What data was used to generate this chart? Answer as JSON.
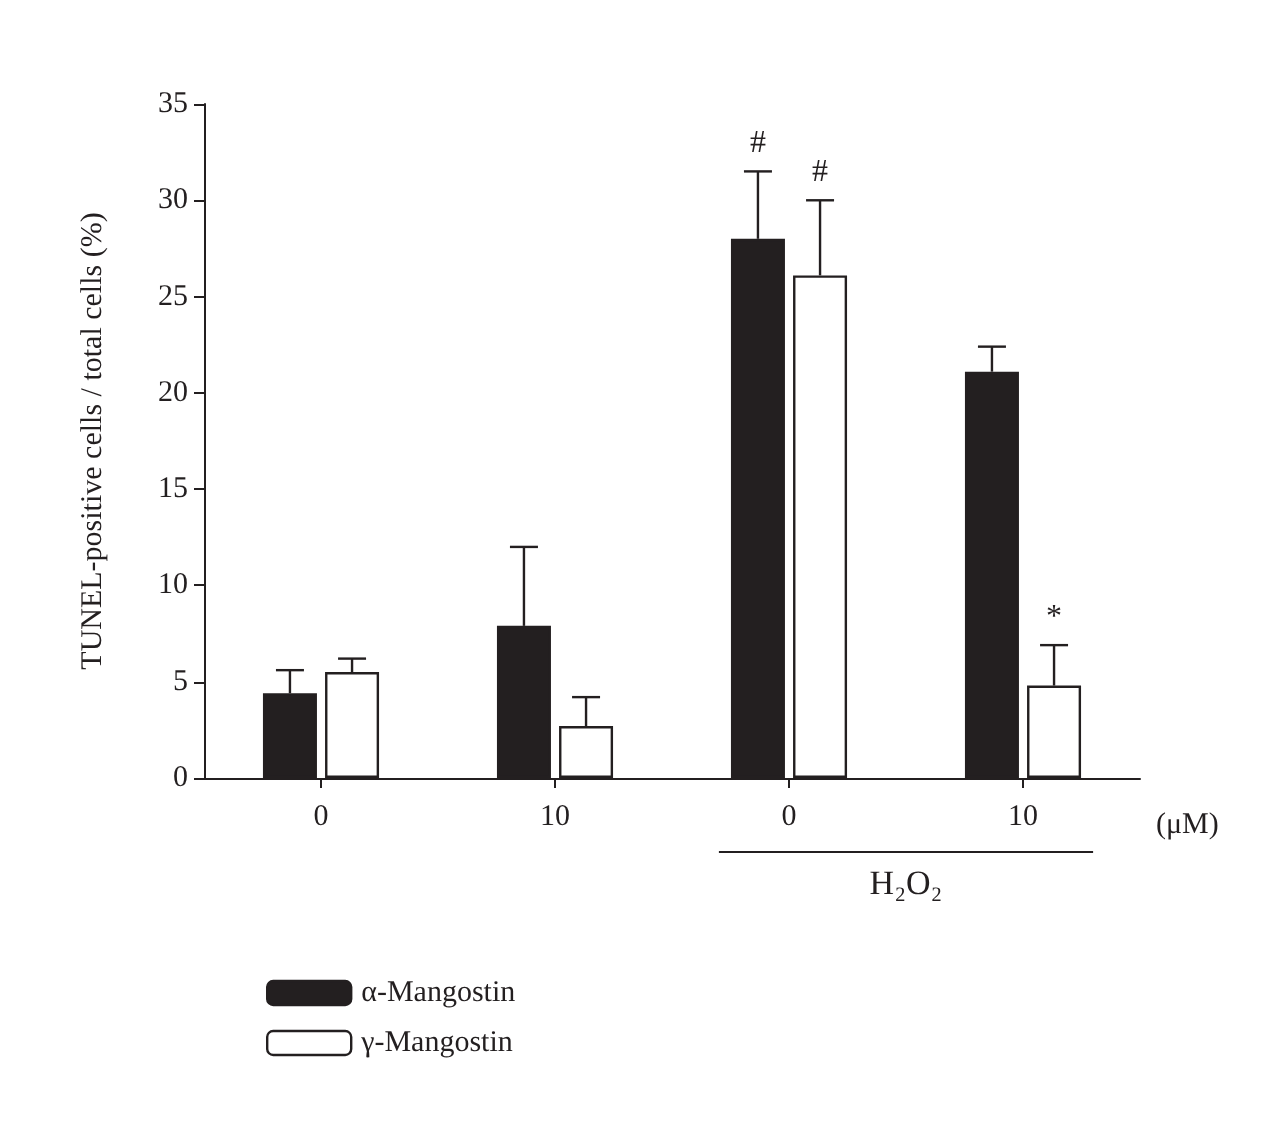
{
  "chart_data": {
    "type": "bar",
    "ylabel": "TUNEL-positive cells / total cells (%)",
    "xlabel": "(μM)",
    "categories": [
      "0",
      "10",
      "0",
      "10"
    ],
    "series": [
      {
        "name": "α-Mangostin",
        "color": "#231f20",
        "values": [
          4.4,
          7.9,
          28.0,
          21.1
        ],
        "errors": [
          [
            4.4,
            5.6
          ],
          [
            7.9,
            12.0
          ],
          [
            28.0,
            31.5
          ],
          [
            21.1,
            22.4
          ]
        ],
        "value_labels": [
          null,
          null,
          "#",
          null
        ]
      },
      {
        "name": "γ-Mangostin",
        "color": "#ffffff",
        "values": [
          5.5,
          2.7,
          26.1,
          4.8
        ],
        "errors": [
          [
            5.5,
            6.2
          ],
          [
            2.7,
            4.2
          ],
          [
            26.1,
            30.0
          ],
          [
            4.8,
            6.9
          ]
        ],
        "value_labels": [
          null,
          null,
          "#",
          "*"
        ]
      }
    ],
    "annotations": [
      "H₂O₂"
    ],
    "ylim": [
      0,
      35
    ],
    "yticks": [
      0,
      5,
      10,
      15,
      20,
      25,
      30,
      35
    ],
    "grid": false,
    "legend": "bottom left"
  }
}
